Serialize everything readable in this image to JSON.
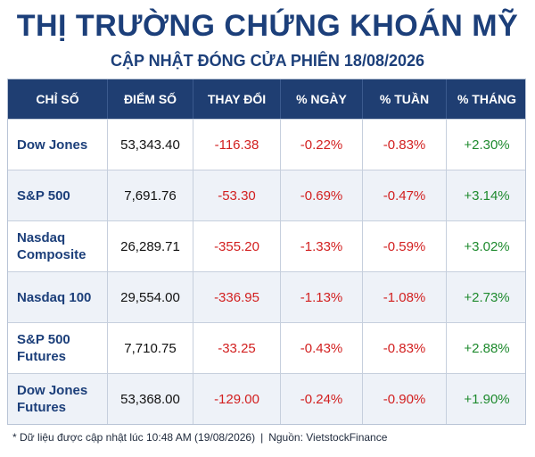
{
  "title": "THỊ TRƯỜNG CHỨNG KHOÁN MỸ",
  "subtitle": "CẬP NHẬT ĐÓNG CỬA PHIÊN 18/08/2026",
  "headers": [
    "CHỈ SỐ",
    "ĐIỂM SỐ",
    "THAY ĐỔI",
    "% NGÀY",
    "% TUẦN",
    "% THÁNG"
  ],
  "rows": [
    {
      "index": "Dow Jones",
      "points": "53,343.40",
      "change": "-116.38",
      "day": "-0.22%",
      "week": "-0.83%",
      "month": "+2.30%"
    },
    {
      "index": "S&P 500",
      "points": "7,691.76",
      "change": "-53.30",
      "day": "-0.69%",
      "week": "-0.47%",
      "month": "+3.14%"
    },
    {
      "index": "Nasdaq Composite",
      "points": "26,289.71",
      "change": "-355.20",
      "day": "-1.33%",
      "week": "-0.59%",
      "month": "+3.02%"
    },
    {
      "index": "Nasdaq 100",
      "points": "29,554.00",
      "change": "-336.95",
      "day": "-1.13%",
      "week": "-1.08%",
      "month": "+2.73%"
    },
    {
      "index": "S&P 500 Futures",
      "points": "7,710.75",
      "change": "-33.25",
      "day": "-0.43%",
      "week": "-0.83%",
      "month": "+2.88%"
    },
    {
      "index": "Dow Jones Futures",
      "points": "53,368.00",
      "change": "-129.00",
      "day": "-0.24%",
      "week": "-0.90%",
      "month": "+1.90%"
    }
  ],
  "footnote": {
    "text": "* Dữ liệu được cập nhật lúc 10:48 AM (19/08/2026)",
    "separator": "|",
    "source": "Nguồn: VietstockFinance"
  },
  "colors": {
    "title": "#1c3f7a",
    "header_bg": "#1f3e72",
    "negative": "#d21f1f",
    "positive": "#1e8a2e",
    "alt_row": "#eef2f8"
  }
}
